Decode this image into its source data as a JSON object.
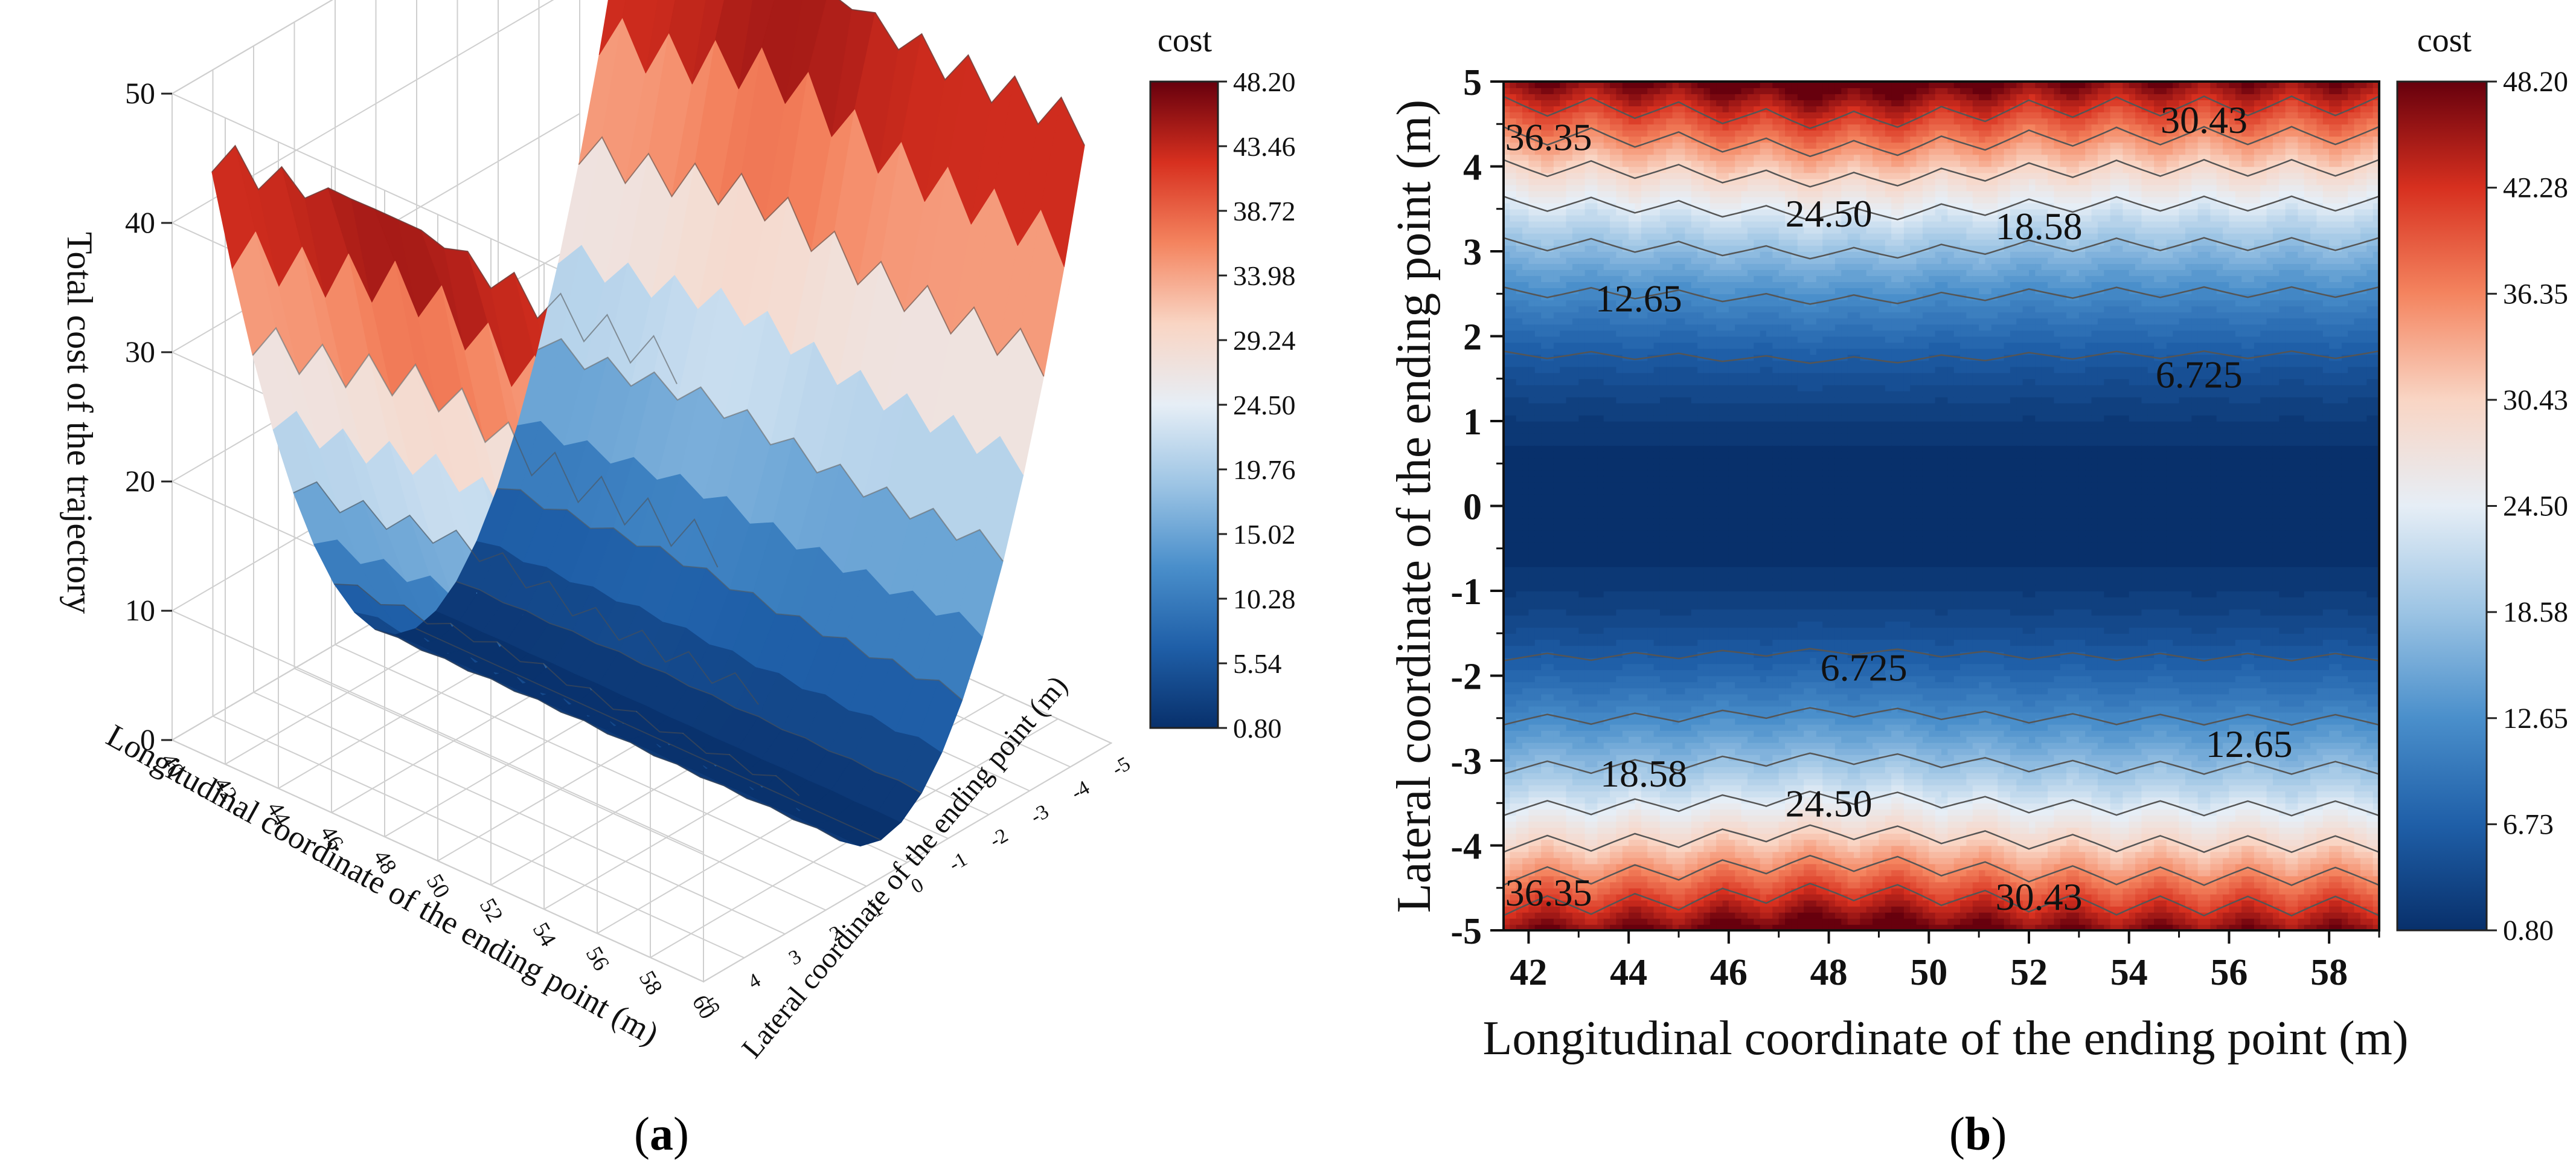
{
  "captions": {
    "a": {
      "open": "(",
      "letter": "a",
      "close": ")"
    },
    "b": {
      "open": "(",
      "letter": "b",
      "close": ")"
    }
  },
  "colormap_stops": [
    "#08306b",
    "#1f5fa8",
    "#4a8fcb",
    "#9cc4e4",
    "#e6eef6",
    "#f9d5c4",
    "#f4845f",
    "#d7301f",
    "#67000d"
  ],
  "chart_data": [
    {
      "id": "a",
      "type": "surface3d",
      "title": "",
      "zlabel": "Total cost of the trajectory",
      "xlabel": "Longitudinal coordinate of the ending point (m)",
      "ylabel": "Lateral coordinate of the ending point (m)",
      "x_ticks": [
        "40",
        "42",
        "44",
        "46",
        "48",
        "50",
        "52",
        "54",
        "56",
        "58",
        "60"
      ],
      "y_ticks": [
        "-5",
        "-4",
        "-3",
        "-2",
        "-1",
        "0",
        "1",
        "2",
        "3",
        "4",
        "5"
      ],
      "z_ticks": [
        "0",
        "10",
        "20",
        "30",
        "40",
        "50"
      ],
      "xlim": [
        40,
        60
      ],
      "ylim": [
        -5,
        5
      ],
      "zlim": [
        0,
        50
      ],
      "surface_model": "cost = 0.8 + 1.9*y^2 + ripple(x), ripple peaks near x=47-49 at |y|=5",
      "colorbar": {
        "label": "cost",
        "range": [
          0.8,
          48.2
        ],
        "ticks": [
          "48.20",
          "43.46",
          "38.72",
          "33.98",
          "29.24",
          "24.50",
          "19.76",
          "15.02",
          "10.28",
          "5.54",
          "0.80"
        ]
      }
    },
    {
      "id": "b",
      "type": "heatmap",
      "subtype": "filled-contour",
      "title": "",
      "xlabel": "Longitudinal coordinate of the ending point (m)",
      "ylabel": "Lateral coordinate of the ending point (m)",
      "xlim": [
        41.5,
        59
      ],
      "ylim": [
        -5,
        5
      ],
      "x_ticks": [
        "42",
        "44",
        "46",
        "48",
        "50",
        "52",
        "54",
        "56",
        "58"
      ],
      "y_ticks": [
        "5",
        "4",
        "3",
        "2",
        "1",
        "0",
        "-1",
        "-2",
        "-3",
        "-4",
        "-5"
      ],
      "contour_levels": [
        6.725,
        12.65,
        18.58,
        24.5,
        30.43,
        36.35,
        42.28
      ],
      "contour_labels": [
        {
          "text": "36.35",
          "x": 42.4,
          "y": 4.35
        },
        {
          "text": "30.43",
          "x": 55.5,
          "y": 4.55
        },
        {
          "text": "24.50",
          "x": 48.0,
          "y": 3.45
        },
        {
          "text": "18.58",
          "x": 52.2,
          "y": 3.3
        },
        {
          "text": "12.65",
          "x": 44.2,
          "y": 2.45
        },
        {
          "text": "6.725",
          "x": 55.4,
          "y": 1.55
        },
        {
          "text": "6.725",
          "x": 48.7,
          "y": -1.9
        },
        {
          "text": "12.65",
          "x": 56.4,
          "y": -2.8
        },
        {
          "text": "18.58",
          "x": 44.3,
          "y": -3.15
        },
        {
          "text": "24.50",
          "x": 48.0,
          "y": -3.5
        },
        {
          "text": "36.35",
          "x": 42.4,
          "y": -4.55
        },
        {
          "text": "30.43",
          "x": 52.2,
          "y": -4.6
        }
      ],
      "colorbar": {
        "label": "cost",
        "range": [
          0.8,
          48.2
        ],
        "ticks": [
          "48.20",
          "42.28",
          "36.35",
          "30.43",
          "24.50",
          "18.58",
          "12.65",
          "6.73",
          "0.80"
        ]
      }
    }
  ]
}
